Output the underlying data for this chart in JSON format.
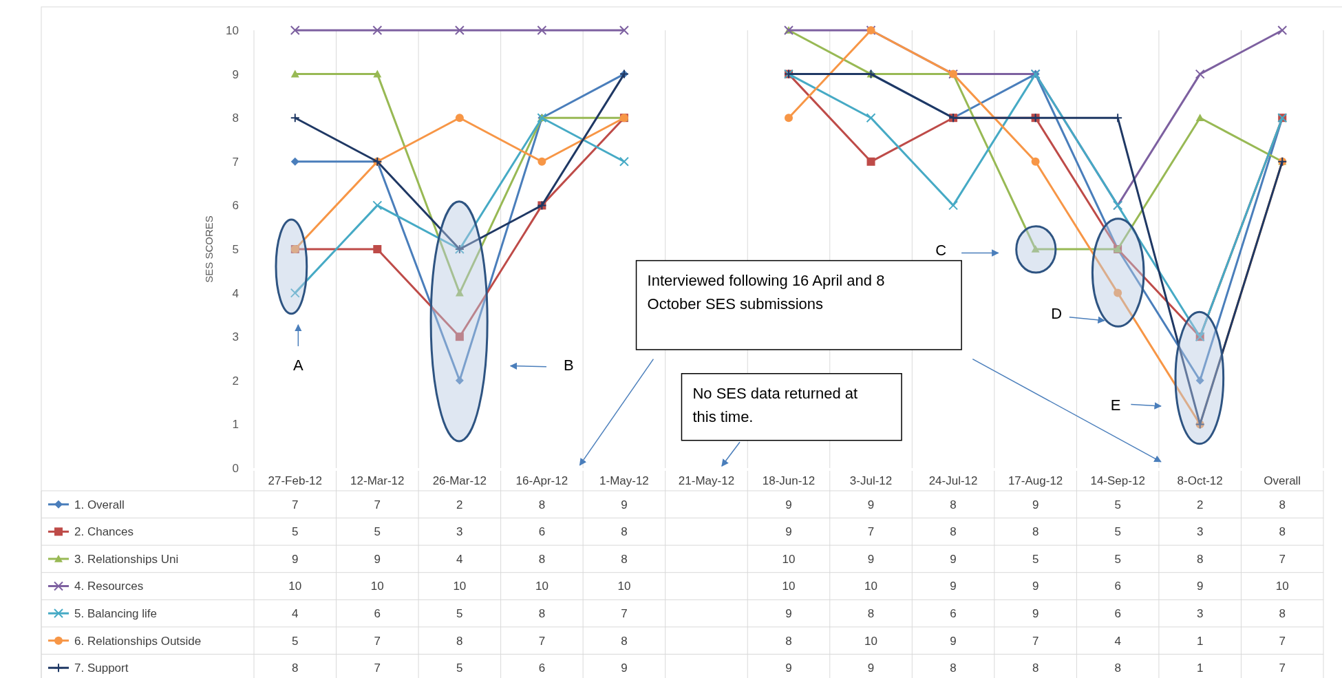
{
  "chart_data": {
    "type": "line",
    "ylabel": "SES SCORES",
    "categories": [
      "27-Feb-12",
      "12-Mar-12",
      "26-Mar-12",
      "16-Apr-12",
      "1-May-12",
      "21-May-12",
      "18-Jun-12",
      "3-Jul-12",
      "24-Jul-12",
      "17-Aug-12",
      "14-Sep-12",
      "8-Oct-12",
      "Overall"
    ],
    "series": [
      {
        "name": "1. Overall",
        "color": "#4a7ebb",
        "marker": "diamond",
        "values": [
          7,
          7,
          2,
          8,
          9,
          null,
          9,
          9,
          8,
          9,
          5,
          2,
          8
        ]
      },
      {
        "name": "2. Chances",
        "color": "#be4b48",
        "marker": "square",
        "values": [
          5,
          5,
          3,
          6,
          8,
          null,
          9,
          7,
          8,
          8,
          5,
          3,
          8
        ]
      },
      {
        "name": "3. Relationships Uni",
        "color": "#98b954",
        "marker": "triangle",
        "values": [
          9,
          9,
          4,
          8,
          8,
          null,
          10,
          9,
          9,
          5,
          5,
          8,
          7
        ]
      },
      {
        "name": "4. Resources",
        "color": "#7d60a0",
        "marker": "cross",
        "values": [
          10,
          10,
          10,
          10,
          10,
          null,
          10,
          10,
          9,
          9,
          6,
          9,
          10
        ]
      },
      {
        "name": "5. Balancing life",
        "color": "#46aac5",
        "marker": "cross",
        "values": [
          4,
          6,
          5,
          8,
          7,
          null,
          9,
          8,
          6,
          9,
          6,
          3,
          8
        ]
      },
      {
        "name": "6. Relationships Outside",
        "color": "#f79646",
        "marker": "circle",
        "values": [
          5,
          7,
          8,
          7,
          8,
          null,
          8,
          10,
          9,
          7,
          4,
          1,
          7
        ]
      },
      {
        "name": "7. Support",
        "color": "#1f3864",
        "marker": "plus",
        "values": [
          8,
          7,
          5,
          6,
          9,
          null,
          9,
          9,
          8,
          8,
          8,
          1,
          7
        ]
      }
    ],
    "ylim": [
      0,
      10
    ],
    "yticks": [
      0,
      1,
      2,
      3,
      4,
      5,
      6,
      7,
      8,
      9,
      10
    ],
    "grid": "x",
    "legend": "bottom",
    "data_labels": true,
    "annotations": [
      "A",
      "B",
      "C",
      "D",
      "E",
      "Interviewed following 16 April and 8 October SES submissions",
      "No SES data returned at this time."
    ]
  }
}
